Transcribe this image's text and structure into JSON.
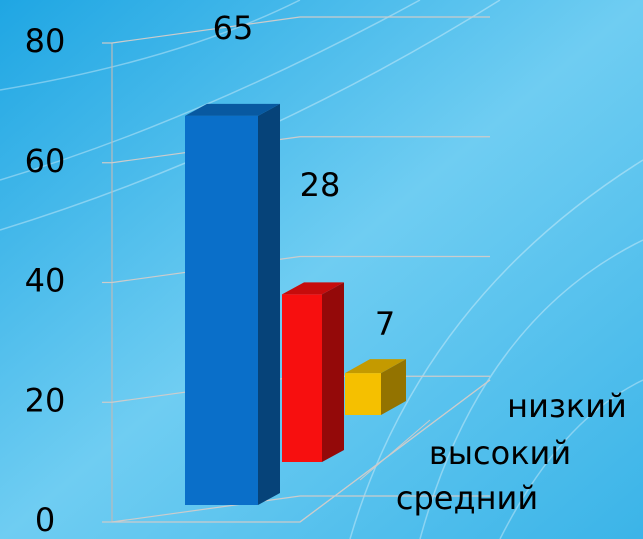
{
  "chart_data": {
    "type": "bar3d",
    "categories": [
      "средний",
      "высокий",
      "низкий"
    ],
    "values": [
      65,
      28,
      7
    ],
    "colors": [
      "#0a6fc9",
      "#f70f0f",
      "#f5c000"
    ],
    "ylim": [
      0,
      80
    ],
    "yticks": [
      0,
      20,
      40,
      60,
      80
    ],
    "grid": true
  }
}
